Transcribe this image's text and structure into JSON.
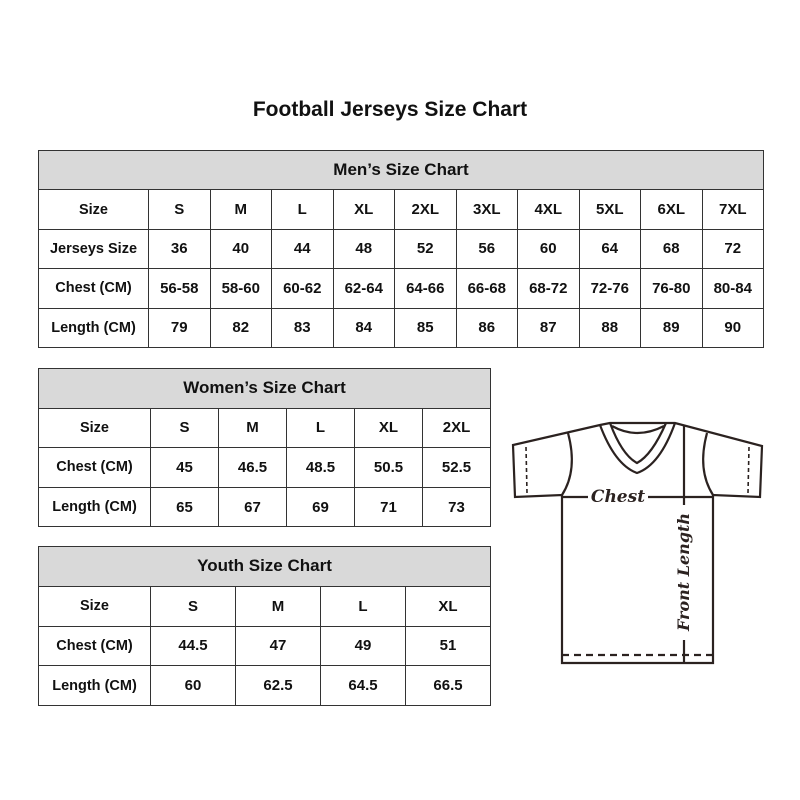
{
  "title": "Football Jerseys Size Chart",
  "men": {
    "heading": "Men’s Size Chart",
    "rows": [
      [
        "Size",
        "S",
        "M",
        "L",
        "XL",
        "2XL",
        "3XL",
        "4XL",
        "5XL",
        "6XL",
        "7XL"
      ],
      [
        "Jerseys Size",
        "36",
        "40",
        "44",
        "48",
        "52",
        "56",
        "60",
        "64",
        "68",
        "72"
      ],
      [
        "Chest (CM)",
        "56-58",
        "58-60",
        "60-62",
        "62-64",
        "64-66",
        "66-68",
        "68-72",
        "72-76",
        "76-80",
        "80-84"
      ],
      [
        "Length (CM)",
        "79",
        "82",
        "83",
        "84",
        "85",
        "86",
        "87",
        "88",
        "89",
        "90"
      ]
    ]
  },
  "women": {
    "heading": "Women’s Size Chart",
    "rows": [
      [
        "Size",
        "S",
        "M",
        "L",
        "XL",
        "2XL"
      ],
      [
        "Chest (CM)",
        "45",
        "46.5",
        "48.5",
        "50.5",
        "52.5"
      ],
      [
        "Length (CM)",
        "65",
        "67",
        "69",
        "71",
        "73"
      ]
    ]
  },
  "youth": {
    "heading": "Youth Size Chart",
    "rows": [
      [
        "Size",
        "S",
        "M",
        "L",
        "XL"
      ],
      [
        "Chest (CM)",
        "44.5",
        "47",
        "49",
        "51"
      ],
      [
        "Length (CM)",
        "60",
        "62.5",
        "64.5",
        "66.5"
      ]
    ]
  },
  "diagram": {
    "chest_label": "Chest",
    "length_label": "Front Length"
  },
  "colors": {
    "header_bg": "#d9d9d9",
    "border": "#333333",
    "shirt_line": "#2b2220"
  }
}
